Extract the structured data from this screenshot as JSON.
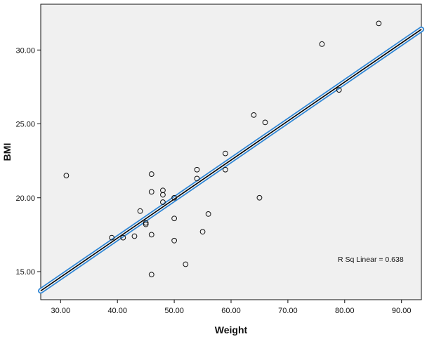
{
  "chart_data": {
    "type": "scatter",
    "xlabel": "Weight",
    "ylabel": "BMI",
    "xlim": [
      26.5,
      93.5
    ],
    "ylim": [
      13.1,
      33.1
    ],
    "x_ticks": [
      {
        "value": 30,
        "label": "30.00"
      },
      {
        "value": 40,
        "label": "40.00"
      },
      {
        "value": 50,
        "label": "50.00"
      },
      {
        "value": 60,
        "label": "60.00"
      },
      {
        "value": 70,
        "label": "70.00"
      },
      {
        "value": 80,
        "label": "80.00"
      },
      {
        "value": 90,
        "label": "90.00"
      }
    ],
    "y_ticks": [
      {
        "value": 15,
        "label": "15.00"
      },
      {
        "value": 20,
        "label": "20.00"
      },
      {
        "value": 25,
        "label": "25.00"
      },
      {
        "value": 30,
        "label": "30.00"
      }
    ],
    "points": [
      {
        "x": 31,
        "y": 21.5
      },
      {
        "x": 39,
        "y": 17.3
      },
      {
        "x": 41,
        "y": 17.3
      },
      {
        "x": 43,
        "y": 17.4
      },
      {
        "x": 44,
        "y": 19.1
      },
      {
        "x": 45,
        "y": 18.3
      },
      {
        "x": 45,
        "y": 18.2
      },
      {
        "x": 46,
        "y": 21.6
      },
      {
        "x": 46,
        "y": 20.4
      },
      {
        "x": 46,
        "y": 17.5
      },
      {
        "x": 46,
        "y": 14.8
      },
      {
        "x": 48,
        "y": 20.5
      },
      {
        "x": 48,
        "y": 20.2
      },
      {
        "x": 48,
        "y": 19.7
      },
      {
        "x": 50,
        "y": 20.0
      },
      {
        "x": 50,
        "y": 18.6
      },
      {
        "x": 50,
        "y": 17.1
      },
      {
        "x": 52,
        "y": 15.5
      },
      {
        "x": 54,
        "y": 21.9
      },
      {
        "x": 54,
        "y": 21.3
      },
      {
        "x": 55,
        "y": 17.7
      },
      {
        "x": 56,
        "y": 18.9
      },
      {
        "x": 59,
        "y": 23.0
      },
      {
        "x": 59,
        "y": 21.9
      },
      {
        "x": 64,
        "y": 25.6
      },
      {
        "x": 65,
        "y": 20.0
      },
      {
        "x": 66,
        "y": 25.1
      },
      {
        "x": 76,
        "y": 30.4
      },
      {
        "x": 79,
        "y": 27.3
      },
      {
        "x": 86,
        "y": 31.8
      }
    ],
    "fit_line": {
      "type": "linear",
      "x": [
        26.5,
        93.5
      ],
      "y": [
        13.7,
        31.4
      ]
    },
    "annotation": "R Sq Linear = 0.638",
    "grid": false,
    "legend": "none",
    "colors": {
      "plot_background": "#f0f0f0",
      "point_stroke": "#111111",
      "fit_line_outer": "#2e86d6",
      "fit_line_inner": "#000000",
      "axis": "#111111"
    }
  }
}
